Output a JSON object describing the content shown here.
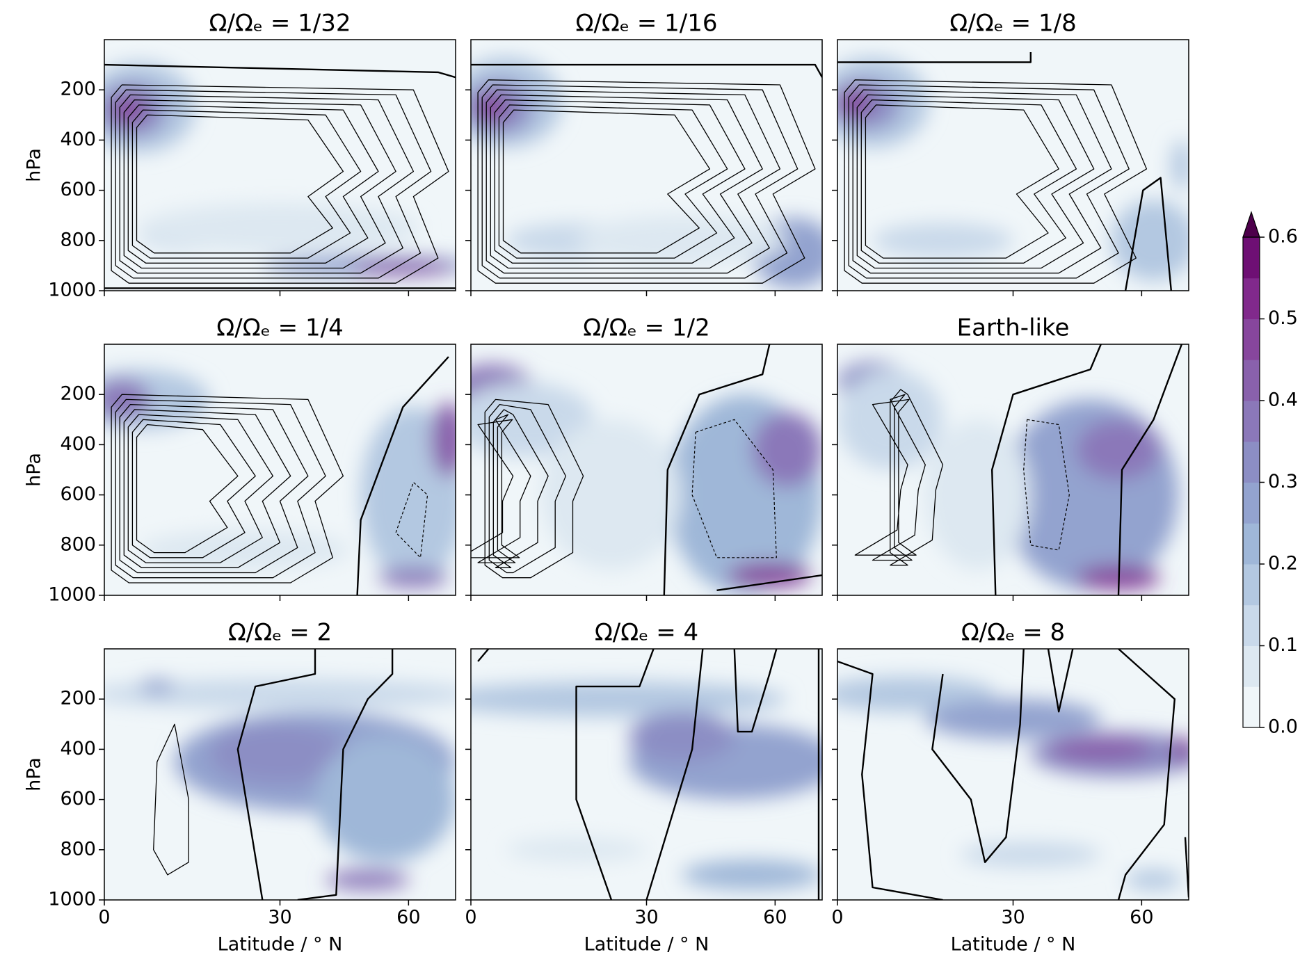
{
  "chart_data": [
    {
      "type": "contour",
      "title": "Ω/Ωₑ = 1/32",
      "xlim": [
        0,
        90
      ],
      "xscale": "sine",
      "xticks": [
        0,
        30,
        60
      ],
      "show_xtick_labels": false,
      "ylim": [
        1000,
        0
      ],
      "yticks": [
        200,
        400,
        600,
        800,
        1000
      ],
      "show_ytick_labels": true,
      "ylabel": "hPa"
    },
    {
      "type": "contour",
      "title": "Ω/Ωₑ = 1/16",
      "xlim": [
        0,
        90
      ],
      "xscale": "sine",
      "xticks": [
        0,
        30,
        60
      ],
      "show_xtick_labels": false,
      "ylim": [
        1000,
        0
      ],
      "yticks": [
        200,
        400,
        600,
        800,
        1000
      ],
      "show_ytick_labels": false
    },
    {
      "type": "contour",
      "title": "Ω/Ωₑ = 1/8",
      "xlim": [
        0,
        90
      ],
      "xscale": "sine",
      "xticks": [
        0,
        30,
        60
      ],
      "show_xtick_labels": false,
      "ylim": [
        1000,
        0
      ],
      "yticks": [
        200,
        400,
        600,
        800,
        1000
      ],
      "show_ytick_labels": false
    },
    {
      "type": "contour",
      "title": "Ω/Ωₑ = 1/4",
      "xlim": [
        0,
        90
      ],
      "xscale": "sine",
      "xticks": [
        0,
        30,
        60
      ],
      "show_xtick_labels": false,
      "ylim": [
        1000,
        0
      ],
      "yticks": [
        200,
        400,
        600,
        800,
        1000
      ],
      "show_ytick_labels": true,
      "ylabel": "hPa"
    },
    {
      "type": "contour",
      "title": "Ω/Ωₑ = 1/2",
      "xlim": [
        0,
        90
      ],
      "xscale": "sine",
      "xticks": [
        0,
        30,
        60
      ],
      "show_xtick_labels": false,
      "ylim": [
        1000,
        0
      ],
      "yticks": [
        200,
        400,
        600,
        800,
        1000
      ],
      "show_ytick_labels": false
    },
    {
      "type": "contour",
      "title": "Earth-like",
      "xlim": [
        0,
        90
      ],
      "xscale": "sine",
      "xticks": [
        0,
        30,
        60
      ],
      "show_xtick_labels": false,
      "ylim": [
        1000,
        0
      ],
      "yticks": [
        200,
        400,
        600,
        800,
        1000
      ],
      "show_ytick_labels": false
    },
    {
      "type": "contour",
      "title": "Ω/Ωₑ = 2",
      "xlim": [
        0,
        90
      ],
      "xscale": "sine",
      "xticks": [
        0,
        30,
        60
      ],
      "show_xtick_labels": true,
      "xlabel": "Latitude / ° N",
      "ylim": [
        1000,
        0
      ],
      "yticks": [
        200,
        400,
        600,
        800,
        1000
      ],
      "show_ytick_labels": true,
      "ylabel": "hPa"
    },
    {
      "type": "contour",
      "title": "Ω/Ωₑ = 4",
      "xlim": [
        0,
        90
      ],
      "xscale": "sine",
      "xticks": [
        0,
        30,
        60
      ],
      "show_xtick_labels": true,
      "xlabel": "Latitude / ° N",
      "ylim": [
        1000,
        0
      ],
      "yticks": [
        200,
        400,
        600,
        800,
        1000
      ],
      "show_ytick_labels": false
    },
    {
      "type": "contour",
      "title": "Ω/Ωₑ = 8",
      "xlim": [
        0,
        90
      ],
      "xscale": "sine",
      "xticks": [
        0,
        30,
        60
      ],
      "show_xtick_labels": true,
      "xlabel": "Latitude / ° N",
      "ylim": [
        1000,
        0
      ],
      "yticks": [
        200,
        400,
        600,
        800,
        1000
      ],
      "show_ytick_labels": false
    },
    {
      "type": "colorbar",
      "ylim": [
        0,
        0.6
      ],
      "yticks": [
        {
          "value": 0,
          "label": "0.0"
        },
        0.1,
        0.2,
        0.3,
        0.4,
        0.5,
        0.6
      ],
      "colors": [
        "#f0f6f9",
        "#dde8f1",
        "#c9d9ea",
        "#b3c8e1",
        "#9fb7d8",
        "#93a3cf",
        "#8c8ec4",
        "#8b78b9",
        "#8961ac",
        "#87469d",
        "#81298c",
        "#6e0f74"
      ],
      "extend_color": "#4d004b"
    }
  ]
}
